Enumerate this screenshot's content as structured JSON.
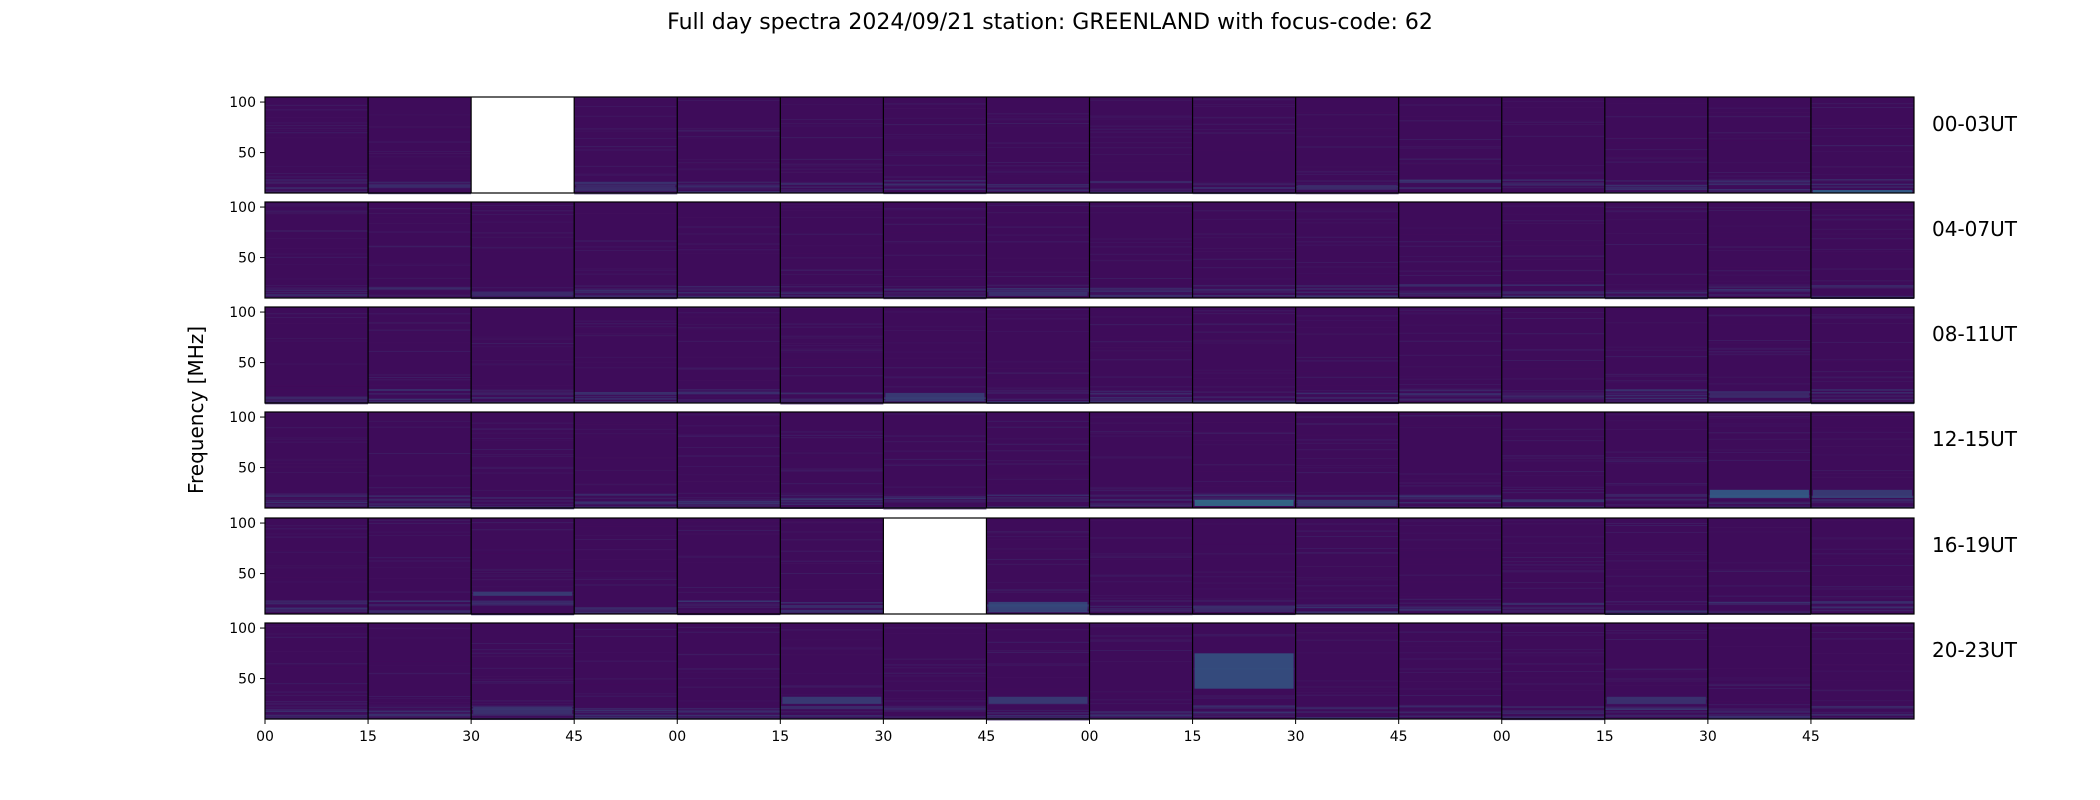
{
  "chart_data": {
    "type": "heatmap",
    "title": "Full day spectra 2024/09/21 station: GREENLAND with focus-code: 62",
    "ylabel": "Frequency [MHz]",
    "xlabel": "",
    "y_ticks": [
      50,
      100
    ],
    "x_ticks": [
      "00",
      "15",
      "30",
      "45",
      "00",
      "15",
      "30",
      "45",
      "00",
      "15",
      "30",
      "45",
      "00",
      "15",
      "30",
      "45"
    ],
    "panels_per_row": 16,
    "minutes_per_panel": 15,
    "colormap": "viridis",
    "rows": [
      {
        "label": "00-03UT",
        "missing_panels": [
          2
        ],
        "bright_bands": [
          {
            "panel": 15,
            "fmin": 10,
            "fmax": 13,
            "level": 0.45
          },
          {
            "panel": 3,
            "fmin": 12,
            "fmax": 18,
            "level": 0.2
          },
          {
            "panel": 10,
            "fmin": 14,
            "fmax": 18,
            "level": 0.2
          }
        ]
      },
      {
        "label": "04-07UT",
        "missing_panels": [],
        "bright_bands": [
          {
            "panel": 7,
            "fmin": 12,
            "fmax": 16,
            "level": 0.25
          },
          {
            "panel": 2,
            "fmin": 12,
            "fmax": 16,
            "level": 0.2
          }
        ]
      },
      {
        "label": "08-11UT",
        "missing_panels": [],
        "bright_bands": [
          {
            "panel": 6,
            "fmin": 12,
            "fmax": 20,
            "level": 0.3
          },
          {
            "panel": 14,
            "fmin": 15,
            "fmax": 20,
            "level": 0.2
          }
        ]
      },
      {
        "label": "12-15UT",
        "missing_panels": [],
        "bright_bands": [
          {
            "panel": 9,
            "fmin": 12,
            "fmax": 18,
            "level": 0.55
          },
          {
            "panel": 14,
            "fmin": 20,
            "fmax": 28,
            "level": 0.45
          },
          {
            "panel": 15,
            "fmin": 20,
            "fmax": 28,
            "level": 0.3
          },
          {
            "panel": 10,
            "fmin": 12,
            "fmax": 18,
            "level": 0.25
          }
        ]
      },
      {
        "label": "16-19UT",
        "missing_panels": [
          6
        ],
        "bright_bands": [
          {
            "panel": 7,
            "fmin": 12,
            "fmax": 22,
            "level": 0.35
          },
          {
            "panel": 2,
            "fmin": 28,
            "fmax": 32,
            "level": 0.3
          },
          {
            "panel": 9,
            "fmin": 12,
            "fmax": 18,
            "level": 0.2
          }
        ]
      },
      {
        "label": "20-23UT",
        "missing_panels": [],
        "bright_bands": [
          {
            "panel": 9,
            "fmin": 40,
            "fmax": 75,
            "level": 0.4
          },
          {
            "panel": 5,
            "fmin": 25,
            "fmax": 32,
            "level": 0.3
          },
          {
            "panel": 7,
            "fmin": 25,
            "fmax": 32,
            "level": 0.3
          },
          {
            "panel": 2,
            "fmin": 15,
            "fmax": 22,
            "level": 0.25
          },
          {
            "panel": 13,
            "fmin": 25,
            "fmax": 32,
            "level": 0.25
          }
        ]
      }
    ],
    "colors": {
      "background": "#3e0c5a",
      "low": "#440154",
      "mid": "#2f6b8e",
      "high": "#35b779",
      "missing": "#ffffff"
    }
  }
}
